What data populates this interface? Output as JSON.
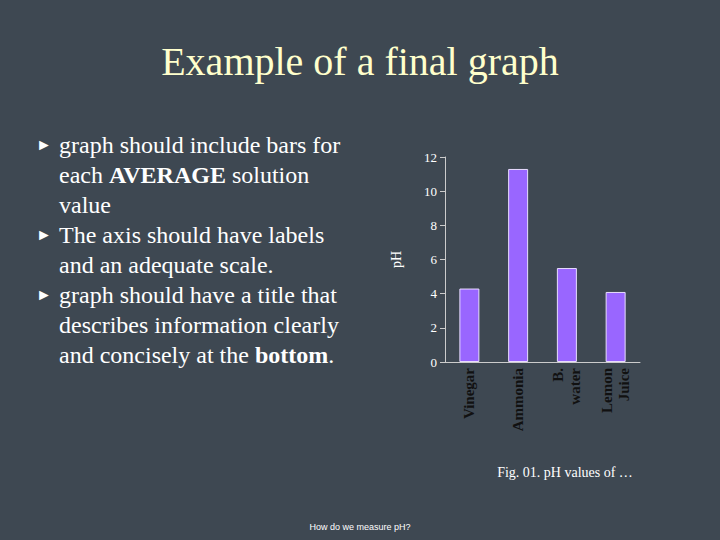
{
  "slide": {
    "title": "Example of a final graph",
    "bullets": [
      [
        {
          "text": "graph should include bars for each "
        },
        {
          "text": "AVERAGE",
          "bold": true
        },
        {
          "text": " solution value"
        }
      ],
      [
        {
          "text": "The axis should have labels and an adequate scale."
        }
      ],
      [
        {
          "text": "graph should have a title that describes information clearly and concisely at the "
        },
        {
          "text": "bottom",
          "bold": true
        },
        {
          "text": "."
        }
      ]
    ],
    "footer": "How do we measure pH?"
  },
  "chart_data": {
    "type": "bar",
    "title": "Fig. 01. pH values of …",
    "y_label": "pH",
    "categories": [
      "Vinegar",
      "Ammonia",
      "B. water",
      "Lemon Juice"
    ],
    "values": [
      4.3,
      11.3,
      5.5,
      4.1
    ],
    "color": "#9966ff",
    "ylim": [
      0,
      12
    ],
    "yticks": [
      0,
      2,
      4,
      6,
      8,
      10,
      12
    ],
    "grid": false
  }
}
